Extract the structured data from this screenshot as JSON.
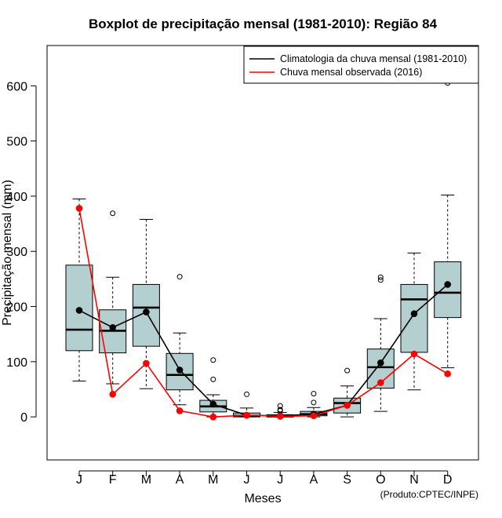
{
  "chart_data": {
    "type": "boxplot",
    "title": "Boxplot de precipitação mensal (1981-2010): Região 84",
    "xlabel": "Meses",
    "ylabel": "Precipitação mensal (mm)",
    "ylim": [
      -78,
      673
    ],
    "yticks": [
      0,
      100,
      200,
      300,
      400,
      500,
      600
    ],
    "categories": [
      "J",
      "F",
      "M",
      "A",
      "M",
      "J",
      "J",
      "A",
      "S",
      "O",
      "N",
      "D"
    ],
    "boxes": [
      {
        "min": 65,
        "q1": 120,
        "median": 158,
        "q3": 275,
        "max": 395,
        "outliers": []
      },
      {
        "min": 60,
        "q1": 116,
        "median": 156,
        "q3": 194,
        "max": 253,
        "outliers": [
          369
        ]
      },
      {
        "min": 51,
        "q1": 128,
        "median": 198,
        "q3": 240,
        "max": 358,
        "outliers": []
      },
      {
        "min": 22,
        "q1": 49,
        "median": 76,
        "q3": 115,
        "max": 152,
        "outliers": [
          254
        ]
      },
      {
        "min": 0,
        "q1": 9,
        "median": 19,
        "q3": 30,
        "max": 40,
        "outliers": [
          103,
          68
        ]
      },
      {
        "min": 0,
        "q1": 0,
        "median": 2,
        "q3": 7,
        "max": 16,
        "outliers": [
          41
        ]
      },
      {
        "min": 0,
        "q1": 0,
        "median": 1,
        "q3": 4,
        "max": 8,
        "outliers": [
          20,
          13,
          11
        ]
      },
      {
        "min": 0,
        "q1": 2,
        "median": 5,
        "q3": 10,
        "max": 17,
        "outliers": [
          42,
          26
        ]
      },
      {
        "min": 0,
        "q1": 7,
        "median": 25,
        "q3": 34,
        "max": 56,
        "outliers": [
          84
        ]
      },
      {
        "min": 10,
        "q1": 52,
        "median": 90,
        "q3": 123,
        "max": 178,
        "outliers": [
          253,
          248
        ]
      },
      {
        "min": 49,
        "q1": 117,
        "median": 213,
        "q3": 240,
        "max": 297,
        "outliers": []
      },
      {
        "min": 89,
        "q1": 180,
        "median": 225,
        "q3": 281,
        "max": 402,
        "outliers": [
          605
        ]
      }
    ],
    "series": [
      {
        "name": "Climatologia da chuva mensal (1981-2010)",
        "color": "#000000",
        "values": [
          193,
          162,
          190,
          85,
          23,
          3,
          2,
          5,
          21,
          98,
          187,
          240
        ]
      },
      {
        "name": "Chuva mensal observada (2016)",
        "color": "#ff0000",
        "values": [
          378,
          41,
          97,
          11,
          0,
          3,
          1,
          2,
          21,
          62,
          114,
          78
        ]
      }
    ],
    "legend_position": "top-right",
    "box_fill": "#b4cfcf",
    "credit": "(Produto:CPTEC/INPE)"
  }
}
